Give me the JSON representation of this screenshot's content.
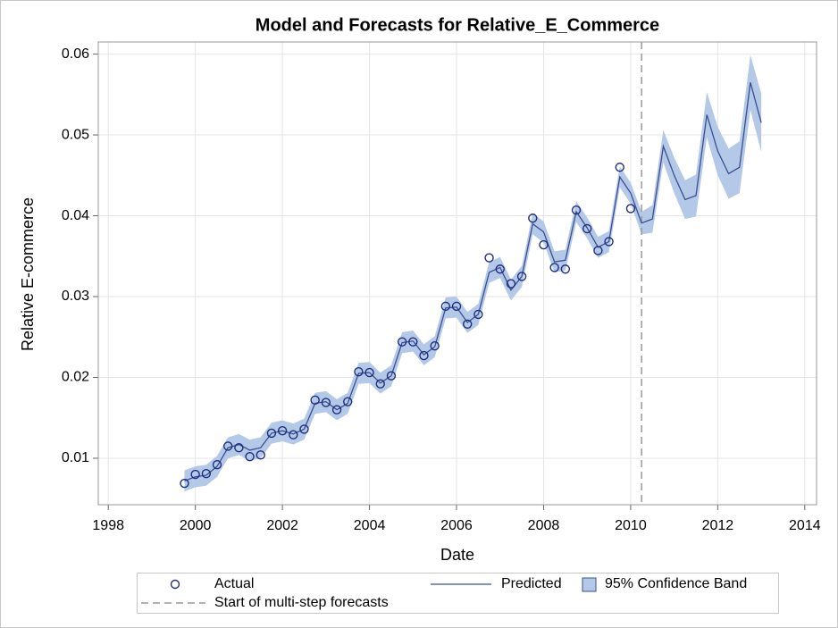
{
  "chart_data": {
    "type": "line",
    "title": "Model and Forecasts for Relative_E_Commerce",
    "x_label": "Date",
    "y_label": "Relative E-commerce",
    "xlim": [
      1997.77,
      2014.27
    ],
    "xticks": [
      1998,
      2000,
      2002,
      2004,
      2006,
      2008,
      2010,
      2012,
      2014
    ],
    "ylim": [
      0.00425,
      0.0615
    ],
    "yticks": [
      0.01,
      0.02,
      0.03,
      0.04,
      0.05,
      0.06
    ],
    "grid": true,
    "x": [
      1999.75,
      2000,
      2000.25,
      2000.5,
      2000.75,
      2001,
      2001.25,
      2001.5,
      2001.75,
      2002,
      2002.25,
      2002.5,
      2002.75,
      2003,
      2003.25,
      2003.5,
      2003.75,
      2004,
      2004.25,
      2004.5,
      2004.75,
      2005,
      2005.25,
      2005.5,
      2005.75,
      2006,
      2006.25,
      2006.5,
      2006.75,
      2007,
      2007.25,
      2007.5,
      2007.75,
      2008,
      2008.25,
      2008.5,
      2008.75,
      2009,
      2009.25,
      2009.5,
      2009.75,
      2010,
      2010.25,
      2010.5,
      2010.75,
      2011,
      2011.25,
      2011.5,
      2011.75,
      2012,
      2012.25,
      2012.5,
      2012.75,
      2013
    ],
    "band": {
      "name": "95% Confidence Band",
      "color": "#b4c8e8",
      "lower": [
        0.0059,
        0.0064,
        0.0066,
        0.0077,
        0.01,
        0.0104,
        0.0097,
        0.01,
        0.0118,
        0.0121,
        0.0117,
        0.0123,
        0.0155,
        0.0157,
        0.0147,
        0.0155,
        0.0192,
        0.0193,
        0.018,
        0.0189,
        0.023,
        0.0232,
        0.0215,
        0.0225,
        0.0273,
        0.0274,
        0.0255,
        0.0265,
        0.0317,
        0.0323,
        0.0295,
        0.0312,
        0.0377,
        0.0367,
        0.033,
        0.0332,
        0.0392,
        0.0372,
        0.0348,
        0.0355,
        0.0435,
        0.0415,
        0.0377,
        0.0379,
        0.0466,
        0.0428,
        0.0396,
        0.0399,
        0.0497,
        0.045,
        0.0421,
        0.0428,
        0.0531,
        0.0479
      ],
      "upper": [
        0.0085,
        0.009,
        0.0092,
        0.0103,
        0.0126,
        0.013,
        0.0123,
        0.0126,
        0.0144,
        0.0147,
        0.0143,
        0.0149,
        0.0181,
        0.0183,
        0.0173,
        0.0181,
        0.0218,
        0.0219,
        0.0206,
        0.0215,
        0.0256,
        0.0258,
        0.0241,
        0.0251,
        0.0299,
        0.03,
        0.0281,
        0.0291,
        0.0343,
        0.0349,
        0.0321,
        0.0338,
        0.0403,
        0.0393,
        0.0356,
        0.0358,
        0.0418,
        0.0398,
        0.0374,
        0.0381,
        0.0461,
        0.0441,
        0.0405,
        0.0413,
        0.0506,
        0.0472,
        0.0444,
        0.0451,
        0.0553,
        0.051,
        0.0483,
        0.0492,
        0.0599,
        0.0551
      ]
    },
    "series": [
      {
        "name": "Actual",
        "color": "#1f2f7f",
        "marker": "circle",
        "values": [
          0.0069,
          0.008,
          0.0081,
          0.0092,
          0.0115,
          0.0113,
          0.0102,
          0.0104,
          0.0131,
          0.0134,
          0.0129,
          0.0136,
          0.0172,
          0.0169,
          0.016,
          0.017,
          0.0207,
          0.0206,
          0.0192,
          0.0202,
          0.0244,
          0.0244,
          0.0227,
          0.0239,
          0.0288,
          0.0288,
          0.0266,
          0.0278,
          0.0348,
          0.0334,
          0.0316,
          0.0325,
          0.0397,
          0.0364,
          0.0336,
          0.0334,
          0.0407,
          0.0384,
          0.0357,
          0.0368,
          0.046,
          0.0409,
          null,
          null,
          null,
          null,
          null,
          null,
          null,
          null,
          null,
          null,
          null,
          null
        ]
      },
      {
        "name": "Predicted",
        "color": "#3a4f8f",
        "marker": "line",
        "values": [
          0.0072,
          0.0077,
          0.0079,
          0.009,
          0.0113,
          0.0117,
          0.011,
          0.0113,
          0.0131,
          0.0134,
          0.013,
          0.0136,
          0.0168,
          0.017,
          0.016,
          0.0168,
          0.0205,
          0.0206,
          0.0193,
          0.0202,
          0.0243,
          0.0245,
          0.0228,
          0.0238,
          0.0286,
          0.0287,
          0.0268,
          0.0278,
          0.033,
          0.0336,
          0.0308,
          0.0325,
          0.039,
          0.038,
          0.0343,
          0.0345,
          0.0405,
          0.0385,
          0.0361,
          0.0368,
          0.0448,
          0.0428,
          0.0391,
          0.0396,
          0.0486,
          0.045,
          0.042,
          0.0425,
          0.0525,
          0.048,
          0.0452,
          0.046,
          0.0565,
          0.0515
        ]
      }
    ],
    "reference_line": {
      "value": 2010.25,
      "label": "Start of multi-step forecasts",
      "color": "#999999"
    }
  }
}
